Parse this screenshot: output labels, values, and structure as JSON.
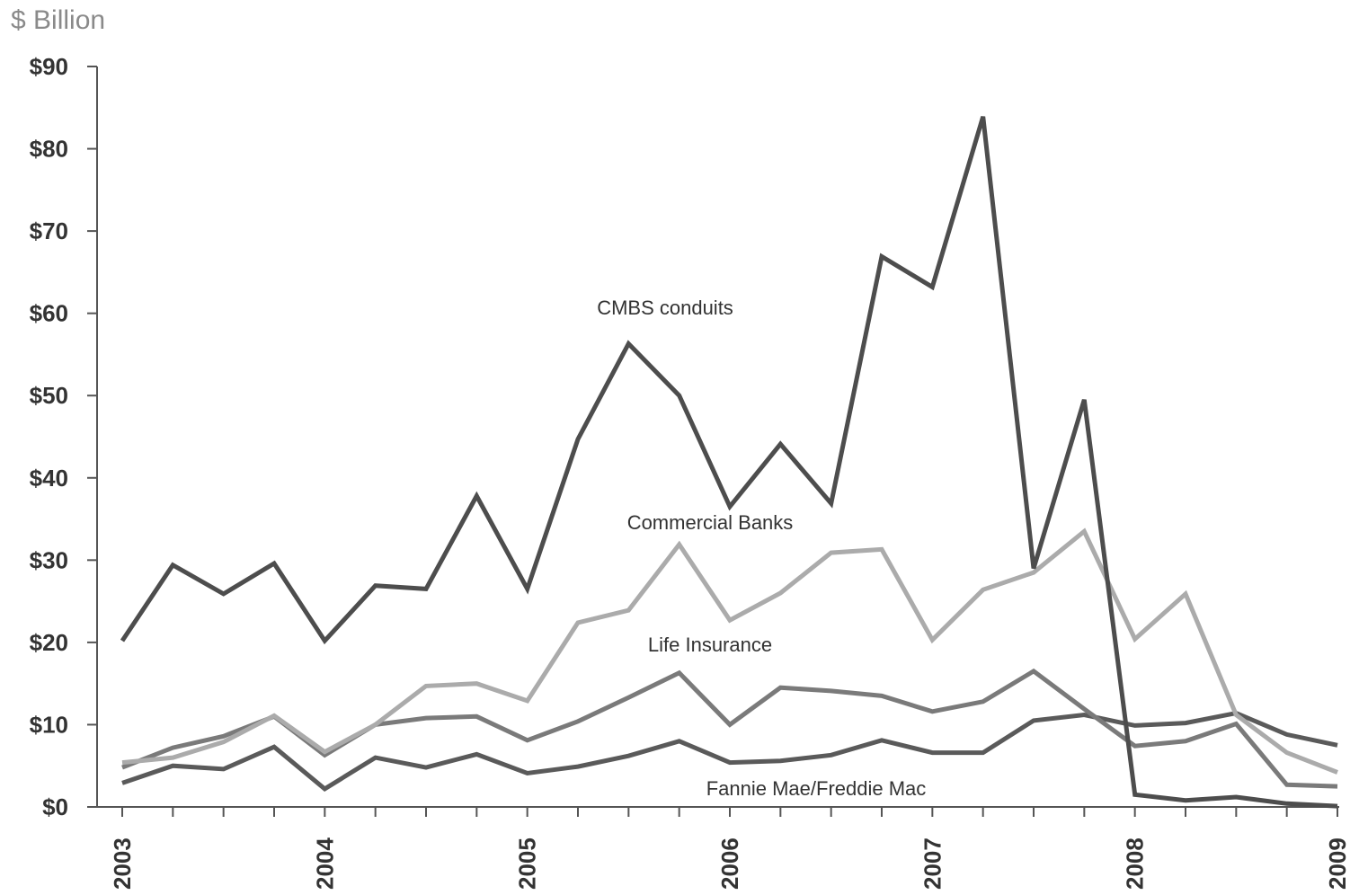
{
  "chart_data": {
    "type": "line",
    "unit_label": "$ Billion",
    "x_labels": [
      "2003",
      "2004",
      "2005",
      "2006",
      "2007",
      "2008",
      "2009"
    ],
    "x": [
      2003.0,
      2003.25,
      2003.5,
      2003.75,
      2004.0,
      2004.25,
      2004.5,
      2004.75,
      2005.0,
      2005.25,
      2005.5,
      2005.75,
      2006.0,
      2006.25,
      2006.5,
      2006.75,
      2007.0,
      2007.25,
      2007.5,
      2007.75,
      2008.0,
      2008.25,
      2008.5,
      2008.75,
      2009.0
    ],
    "xlim": [
      2003,
      2009
    ],
    "ylim": [
      0,
      90
    ],
    "y_ticks": [
      0,
      10,
      20,
      30,
      40,
      50,
      60,
      70,
      80,
      90
    ],
    "y_tick_labels": [
      "$0",
      "$10",
      "$20",
      "$30",
      "$40",
      "$50",
      "$60",
      "$70",
      "$80",
      "$90"
    ],
    "grid": false,
    "series": [
      {
        "name": "CMBS conduits",
        "color": "#4d4d4d",
        "values": [
          20.2,
          29.4,
          25.9,
          29.6,
          20.2,
          26.9,
          26.5,
          37.8,
          26.5,
          44.7,
          56.3,
          50.0,
          36.5,
          44.1,
          36.9,
          66.9,
          63.2,
          83.9,
          29.0,
          49.5,
          1.5,
          0.8,
          1.2,
          0.4,
          0.1
        ]
      },
      {
        "name": "Commercial Banks",
        "color": "#ababab",
        "values": [
          5.4,
          6.0,
          7.9,
          11.1,
          6.7,
          10.0,
          14.7,
          15.0,
          12.9,
          22.4,
          23.9,
          31.9,
          22.7,
          26.0,
          30.9,
          31.3,
          20.3,
          26.4,
          28.5,
          33.5,
          20.4,
          25.9,
          11.2,
          6.6,
          4.2
        ]
      },
      {
        "name": "Life Insurance",
        "color": "#7a7a7a",
        "values": [
          4.8,
          7.2,
          8.6,
          11.0,
          6.3,
          10.0,
          10.8,
          11.0,
          8.1,
          10.4,
          13.3,
          16.3,
          10.0,
          14.5,
          14.1,
          13.5,
          11.6,
          12.8,
          16.5,
          11.9,
          7.4,
          8.0,
          10.1,
          2.7,
          2.5
        ]
      },
      {
        "name": "Fannie Mae/Freddie Mac",
        "color": "#5a5a5a",
        "values": [
          2.9,
          5.0,
          4.6,
          7.3,
          2.2,
          6.0,
          4.8,
          6.4,
          4.1,
          4.9,
          6.2,
          8.0,
          5.4,
          5.6,
          6.3,
          8.1,
          6.6,
          6.6,
          10.5,
          11.2,
          9.9,
          10.2,
          11.4,
          8.8,
          7.5
        ]
      }
    ]
  }
}
